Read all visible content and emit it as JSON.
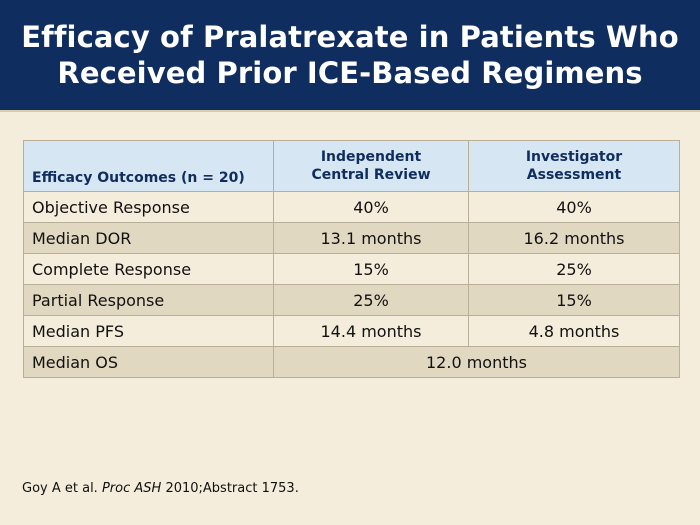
{
  "title": {
    "line1": "Efficacy of Pralatrexate in Patients Who",
    "line2": "Received Prior ICE-Based Regimens"
  },
  "table": {
    "headers": {
      "col1": "Efficacy Outcomes (n = 20)",
      "col2_line1": "Independent",
      "col2_line2": "Central Review",
      "col3_line1": "Investigator",
      "col3_line2": "Assessment"
    },
    "rows": [
      {
        "label": "Objective Response",
        "independent": "40%",
        "investigator": "40%"
      },
      {
        "label": "Median DOR",
        "independent": "13.1 months",
        "investigator": "16.2 months"
      },
      {
        "label": "Complete Response",
        "independent": "15%",
        "investigator": "25%"
      },
      {
        "label": "Partial Response",
        "independent": "25%",
        "investigator": "15%"
      },
      {
        "label": "Median PFS",
        "independent": "14.4 months",
        "investigator": "4.8 months"
      }
    ],
    "merged_row": {
      "label": "Median OS",
      "value": "12.0 months"
    }
  },
  "citation": {
    "authors": "Goy A et al.",
    "journal": "Proc ASH",
    "rest": "2010;Abstract 1753."
  },
  "colors": {
    "header_bg": "#0f2d5e",
    "table_header_bg": "#d6e6f2",
    "row_light": "#f4eddc",
    "row_dark": "#e1d8c1"
  }
}
